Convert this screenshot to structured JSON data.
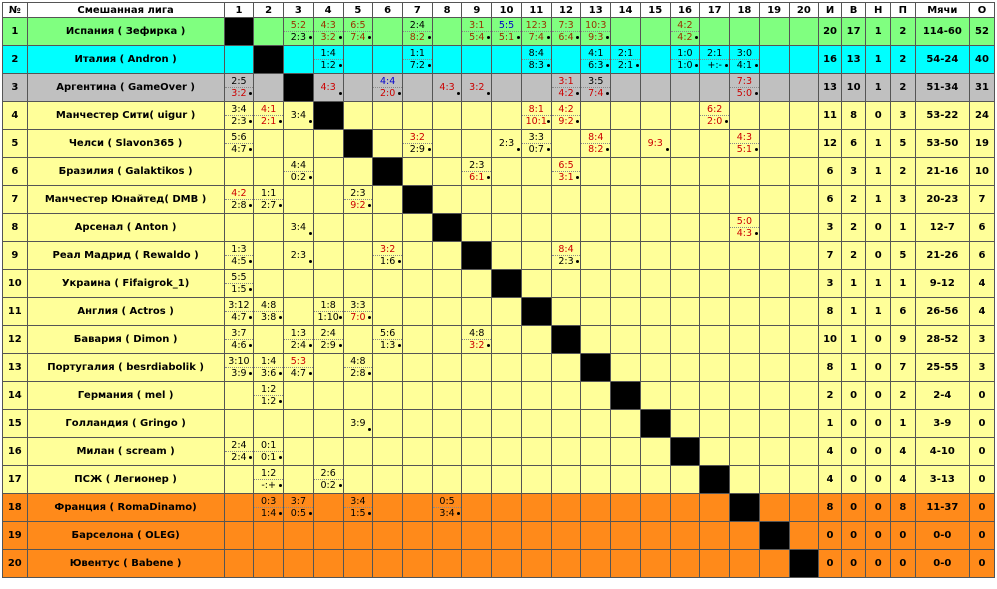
{
  "header": [
    "№",
    "Смешанная лига",
    "1",
    "2",
    "3",
    "4",
    "5",
    "6",
    "7",
    "8",
    "9",
    "10",
    "11",
    "12",
    "13",
    "14",
    "15",
    "16",
    "17",
    "18",
    "19",
    "20",
    "И",
    "В",
    "Н",
    "П",
    "Мячи",
    "О"
  ],
  "colors": {
    "green": "#80ff80",
    "cyan": "#00ffff",
    "grey": "#c0c0c0",
    "yellow": "#ffff99",
    "orange": "#ff8a1a",
    "red": "#cc0000",
    "brown": "#993300",
    "blue": "#0000cc"
  },
  "rows": [
    {
      "num": "1",
      "team": "Испания ( Зефирка )",
      "zone": "green",
      "cells": {
        "3": [
          [
            "5:2",
            "c-brown"
          ],
          [
            "2:3",
            "c-black"
          ]
        ],
        "4": [
          [
            "4:3",
            "c-brown"
          ],
          [
            "3:2",
            "c-brown"
          ]
        ],
        "5": [
          [
            "6:5",
            "c-brown"
          ],
          [
            "7:4",
            "c-brown"
          ]
        ],
        "7": [
          [
            "2:4",
            "c-black"
          ],
          [
            "8:2",
            "c-brown"
          ]
        ],
        "9": [
          [
            "3:1",
            "c-brown"
          ],
          [
            "5:4",
            "c-brown"
          ]
        ],
        "10": [
          [
            "5:5",
            "c-blue"
          ],
          [
            "5:1",
            "c-brown"
          ]
        ],
        "11": [
          [
            "12:3",
            "c-brown"
          ],
          [
            "7:4",
            "c-brown"
          ]
        ],
        "12": [
          [
            "7:3",
            "c-brown"
          ],
          [
            "6:4",
            "c-brown"
          ]
        ],
        "13": [
          [
            "10:3",
            "c-brown"
          ],
          [
            "9:3",
            "c-brown"
          ]
        ],
        "16": [
          [
            "4:2",
            "c-brown"
          ],
          [
            "4:2",
            "c-brown"
          ]
        ]
      },
      "stats": [
        "20",
        "17",
        "1",
        "2",
        "114-60",
        "52"
      ]
    },
    {
      "num": "2",
      "team": "Италия ( Andron )",
      "zone": "cyan",
      "cells": {
        "4": [
          [
            "1:4",
            "c-black"
          ],
          [
            "1:2",
            "c-black"
          ]
        ],
        "7": [
          [
            "1:1",
            "c-black"
          ],
          [
            "7:2",
            "c-black"
          ]
        ],
        "11": [
          [
            "8:4",
            "c-black"
          ],
          [
            "8:3",
            "c-black"
          ]
        ],
        "13": [
          [
            "4:1",
            "c-black"
          ],
          [
            "6:3",
            "c-black"
          ]
        ],
        "14": [
          [
            "2:1",
            "c-black"
          ],
          [
            "2:1",
            "c-black"
          ]
        ],
        "16": [
          [
            "1:0",
            "c-black"
          ],
          [
            "1:0",
            "c-black"
          ]
        ],
        "17": [
          [
            "2:1",
            "c-black"
          ],
          [
            "+:-",
            "c-black"
          ]
        ],
        "18": [
          [
            "3:0",
            "c-black"
          ],
          [
            "4:1",
            "c-black"
          ]
        ]
      },
      "stats": [
        "16",
        "13",
        "1",
        "2",
        "54-24",
        "40"
      ]
    },
    {
      "num": "3",
      "team": "Аргентина ( GameOver )",
      "zone": "grey",
      "cells": {
        "1": [
          [
            "2:5",
            "c-black"
          ],
          [
            "3:2",
            "c-red"
          ]
        ],
        "4": [
          [
            "4:3",
            "c-red"
          ]
        ],
        "6": [
          [
            "4:4",
            "c-blue"
          ],
          [
            "2:0",
            "c-red"
          ]
        ],
        "8": [
          [
            "4:3",
            "c-red"
          ]
        ],
        "9": [
          [
            "3:2",
            "c-red"
          ]
        ],
        "12": [
          [
            "3:1",
            "c-red"
          ],
          [
            "4:2",
            "c-red"
          ]
        ],
        "13": [
          [
            "3:5",
            "c-black"
          ],
          [
            "7:4",
            "c-red"
          ]
        ],
        "18": [
          [
            "7:3",
            "c-red"
          ],
          [
            "5:0",
            "c-red"
          ]
        ]
      },
      "stats": [
        "13",
        "10",
        "1",
        "2",
        "51-34",
        "31"
      ]
    },
    {
      "num": "4",
      "team": "Манчестер Сити( uigur )",
      "zone": "yellow",
      "cells": {
        "1": [
          [
            "3:4",
            "c-black"
          ],
          [
            "2:3",
            "c-black"
          ]
        ],
        "2": [
          [
            "4:1",
            "c-red"
          ],
          [
            "2:1",
            "c-red"
          ]
        ],
        "3": [
          [
            "3:4",
            "c-black"
          ]
        ],
        "11": [
          [
            "8:1",
            "c-red"
          ],
          [
            "10:1",
            "c-red"
          ]
        ],
        "12": [
          [
            "4:2",
            "c-red"
          ],
          [
            "9:2",
            "c-red"
          ]
        ],
        "17": [
          [
            "6:2",
            "c-red"
          ],
          [
            "2:0",
            "c-red"
          ]
        ]
      },
      "stats": [
        "11",
        "8",
        "0",
        "3",
        "53-22",
        "24"
      ]
    },
    {
      "num": "5",
      "team": "Челси ( Slavon365 )",
      "zone": "yellow",
      "cells": {
        "1": [
          [
            "5:6",
            "c-black"
          ],
          [
            "4:7",
            "c-black"
          ]
        ],
        "7": [
          [
            "3:2",
            "c-red"
          ],
          [
            "2:9",
            "c-black"
          ]
        ],
        "10": [
          [
            "2:3",
            "c-black"
          ]
        ],
        "11": [
          [
            "3:3",
            "c-black"
          ],
          [
            "0:7",
            "c-black"
          ]
        ],
        "13": [
          [
            "8:4",
            "c-red"
          ],
          [
            "8:2",
            "c-red"
          ]
        ],
        "15": [
          [
            "9:3",
            "c-red"
          ]
        ],
        "18": [
          [
            "4:3",
            "c-red"
          ],
          [
            "5:1",
            "c-red"
          ]
        ]
      },
      "stats": [
        "12",
        "6",
        "1",
        "5",
        "53-50",
        "19"
      ]
    },
    {
      "num": "6",
      "team": "Бразилия ( Galaktikos )",
      "zone": "yellow",
      "cells": {
        "3": [
          [
            "4:4",
            "c-black"
          ],
          [
            "0:2",
            "c-black"
          ]
        ],
        "9": [
          [
            "2:3",
            "c-black"
          ],
          [
            "6:1",
            "c-red"
          ]
        ],
        "12": [
          [
            "6:5",
            "c-red"
          ],
          [
            "3:1",
            "c-red"
          ]
        ]
      },
      "stats": [
        "6",
        "3",
        "1",
        "2",
        "21-16",
        "10"
      ]
    },
    {
      "num": "7",
      "team": "Манчестер Юнайтед( DMB )",
      "zone": "yellow",
      "cells": {
        "1": [
          [
            "4:2",
            "c-red"
          ],
          [
            "2:8",
            "c-black"
          ]
        ],
        "2": [
          [
            "1:1",
            "c-black"
          ],
          [
            "2:7",
            "c-black"
          ]
        ],
        "5": [
          [
            "2:3",
            "c-black"
          ],
          [
            "9:2",
            "c-red"
          ]
        ]
      },
      "stats": [
        "6",
        "2",
        "1",
        "3",
        "20-23",
        "7"
      ]
    },
    {
      "num": "8",
      "team": "Арсенал ( Anton )",
      "zone": "yellow",
      "cells": {
        "3": [
          [
            "3:4",
            "c-black"
          ]
        ],
        "18": [
          [
            "5:0",
            "c-red"
          ],
          [
            "4:3",
            "c-red"
          ]
        ]
      },
      "stats": [
        "3",
        "2",
        "0",
        "1",
        "12-7",
        "6"
      ]
    },
    {
      "num": "9",
      "team": "Реал Мадрид ( Rewaldo )",
      "zone": "yellow",
      "cells": {
        "1": [
          [
            "1:3",
            "c-black"
          ],
          [
            "4:5",
            "c-black"
          ]
        ],
        "3": [
          [
            "2:3",
            "c-black"
          ]
        ],
        "6": [
          [
            "3:2",
            "c-red"
          ],
          [
            "1:6",
            "c-black"
          ]
        ],
        "12": [
          [
            "8:4",
            "c-red"
          ],
          [
            "2:3",
            "c-black"
          ]
        ]
      },
      "stats": [
        "7",
        "2",
        "0",
        "5",
        "21-26",
        "6"
      ]
    },
    {
      "num": "10",
      "team": "Украина ( Fifaigrok_1)",
      "zone": "yellow",
      "cells": {
        "1": [
          [
            "5:5",
            "c-black"
          ],
          [
            "1:5",
            "c-black"
          ]
        ]
      },
      "stats": [
        "3",
        "1",
        "1",
        "1",
        "9-12",
        "4"
      ]
    },
    {
      "num": "11",
      "team": "Англия ( Actros )",
      "zone": "yellow",
      "cells": {
        "1": [
          [
            "3:12",
            "c-black"
          ],
          [
            "4:7",
            "c-black"
          ]
        ],
        "2": [
          [
            "4:8",
            "c-black"
          ],
          [
            "3:8",
            "c-black"
          ]
        ],
        "4": [
          [
            "1:8",
            "c-black"
          ],
          [
            "1:10",
            "c-black"
          ]
        ],
        "5": [
          [
            "3:3",
            "c-black"
          ],
          [
            "7:0",
            "c-red"
          ]
        ]
      },
      "stats": [
        "8",
        "1",
        "1",
        "6",
        "26-56",
        "4"
      ]
    },
    {
      "num": "12",
      "team": "Бавария ( Dimon )",
      "zone": "yellow",
      "cells": {
        "1": [
          [
            "3:7",
            "c-black"
          ],
          [
            "4:6",
            "c-black"
          ]
        ],
        "3": [
          [
            "1:3",
            "c-black"
          ],
          [
            "2:4",
            "c-black"
          ]
        ],
        "4": [
          [
            "2:4",
            "c-black"
          ],
          [
            "2:9",
            "c-black"
          ]
        ],
        "6": [
          [
            "5:6",
            "c-black"
          ],
          [
            "1:3",
            "c-black"
          ]
        ],
        "9": [
          [
            "4:8",
            "c-black"
          ],
          [
            "3:2",
            "c-red"
          ]
        ]
      },
      "stats": [
        "10",
        "1",
        "0",
        "9",
        "28-52",
        "3"
      ]
    },
    {
      "num": "13",
      "team": "Португалия ( besrdiabolik )",
      "zone": "yellow",
      "cells": {
        "1": [
          [
            "3:10",
            "c-black"
          ],
          [
            "3:9",
            "c-black"
          ]
        ],
        "2": [
          [
            "1:4",
            "c-black"
          ],
          [
            "3:6",
            "c-black"
          ]
        ],
        "3": [
          [
            "5:3",
            "c-red"
          ],
          [
            "4:7",
            "c-black"
          ]
        ],
        "5": [
          [
            "4:8",
            "c-black"
          ],
          [
            "2:8",
            "c-black"
          ]
        ]
      },
      "stats": [
        "8",
        "1",
        "0",
        "7",
        "25-55",
        "3"
      ]
    },
    {
      "num": "14",
      "team": "Германия ( mel )",
      "zone": "yellow",
      "cells": {
        "2": [
          [
            "1:2",
            "c-black"
          ],
          [
            "1:2",
            "c-black"
          ]
        ]
      },
      "stats": [
        "2",
        "0",
        "0",
        "2",
        "2-4",
        "0"
      ]
    },
    {
      "num": "15",
      "team": "Голландия ( Gringo )",
      "zone": "yellow",
      "cells": {
        "5": [
          [
            "3:9",
            "c-black"
          ]
        ]
      },
      "stats": [
        "1",
        "0",
        "0",
        "1",
        "3-9",
        "0"
      ]
    },
    {
      "num": "16",
      "team": "Милан ( scream )",
      "zone": "yellow",
      "cells": {
        "1": [
          [
            "2:4",
            "c-black"
          ],
          [
            "2:4",
            "c-black"
          ]
        ],
        "2": [
          [
            "0:1",
            "c-black"
          ],
          [
            "0:1",
            "c-black"
          ]
        ]
      },
      "stats": [
        "4",
        "0",
        "0",
        "4",
        "4-10",
        "0"
      ]
    },
    {
      "num": "17",
      "team": "ПСЖ ( Легионер )",
      "zone": "yellow",
      "cells": {
        "2": [
          [
            "1:2",
            "c-black"
          ],
          [
            "-:+",
            "c-black"
          ]
        ],
        "4": [
          [
            "2:6",
            "c-black"
          ],
          [
            "0:2",
            "c-black"
          ]
        ]
      },
      "stats": [
        "4",
        "0",
        "0",
        "4",
        "3-13",
        "0"
      ]
    },
    {
      "num": "18",
      "team": "Франция ( RomaDinamo)",
      "zone": "orange",
      "cells": {
        "2": [
          [
            "0:3",
            "c-black"
          ],
          [
            "1:4",
            "c-black"
          ]
        ],
        "3": [
          [
            "3:7",
            "c-black"
          ],
          [
            "0:5",
            "c-black"
          ]
        ],
        "5": [
          [
            "3:4",
            "c-black"
          ],
          [
            "1:5",
            "c-black"
          ]
        ],
        "8": [
          [
            "0:5",
            "c-black"
          ],
          [
            "3:4",
            "c-black"
          ]
        ]
      },
      "stats": [
        "8",
        "0",
        "0",
        "8",
        "11-37",
        "0"
      ]
    },
    {
      "num": "19",
      "team": "Барселона ( OLEG)",
      "zone": "orange",
      "cells": {},
      "stats": [
        "0",
        "0",
        "0",
        "0",
        "0-0",
        "0"
      ]
    },
    {
      "num": "20",
      "team": "Ювентус ( Babene )",
      "zone": "orange",
      "cells": {},
      "stats": [
        "0",
        "0",
        "0",
        "0",
        "0-0",
        "0"
      ]
    }
  ]
}
